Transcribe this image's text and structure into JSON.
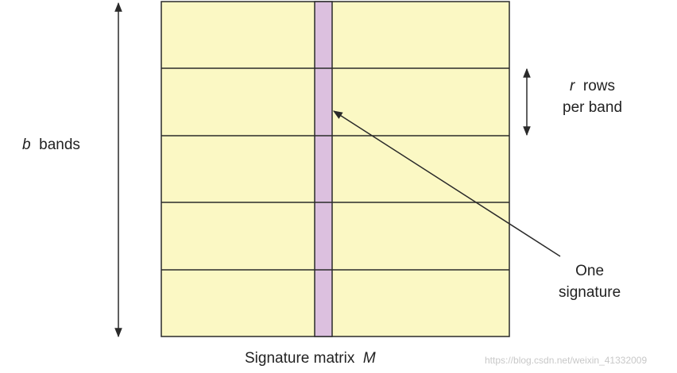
{
  "diagram": {
    "band_count": 5,
    "colors": {
      "matrix_fill": "#fbf8c4",
      "signature_fill": "#dcc0df",
      "line": "#2a2a2a",
      "background": "#ffffff",
      "watermark": "#c8c8c8"
    },
    "labels": {
      "bands_var": "b",
      "bands_text": "bands",
      "rows_var": "r",
      "rows_text_line1": "rows",
      "rows_text_line2": "per band",
      "signature_line1": "One",
      "signature_line2": "signature",
      "matrix_caption": "Signature matrix",
      "matrix_var": "M"
    },
    "watermark": "https://blog.csdn.net/weixin_41332009"
  }
}
